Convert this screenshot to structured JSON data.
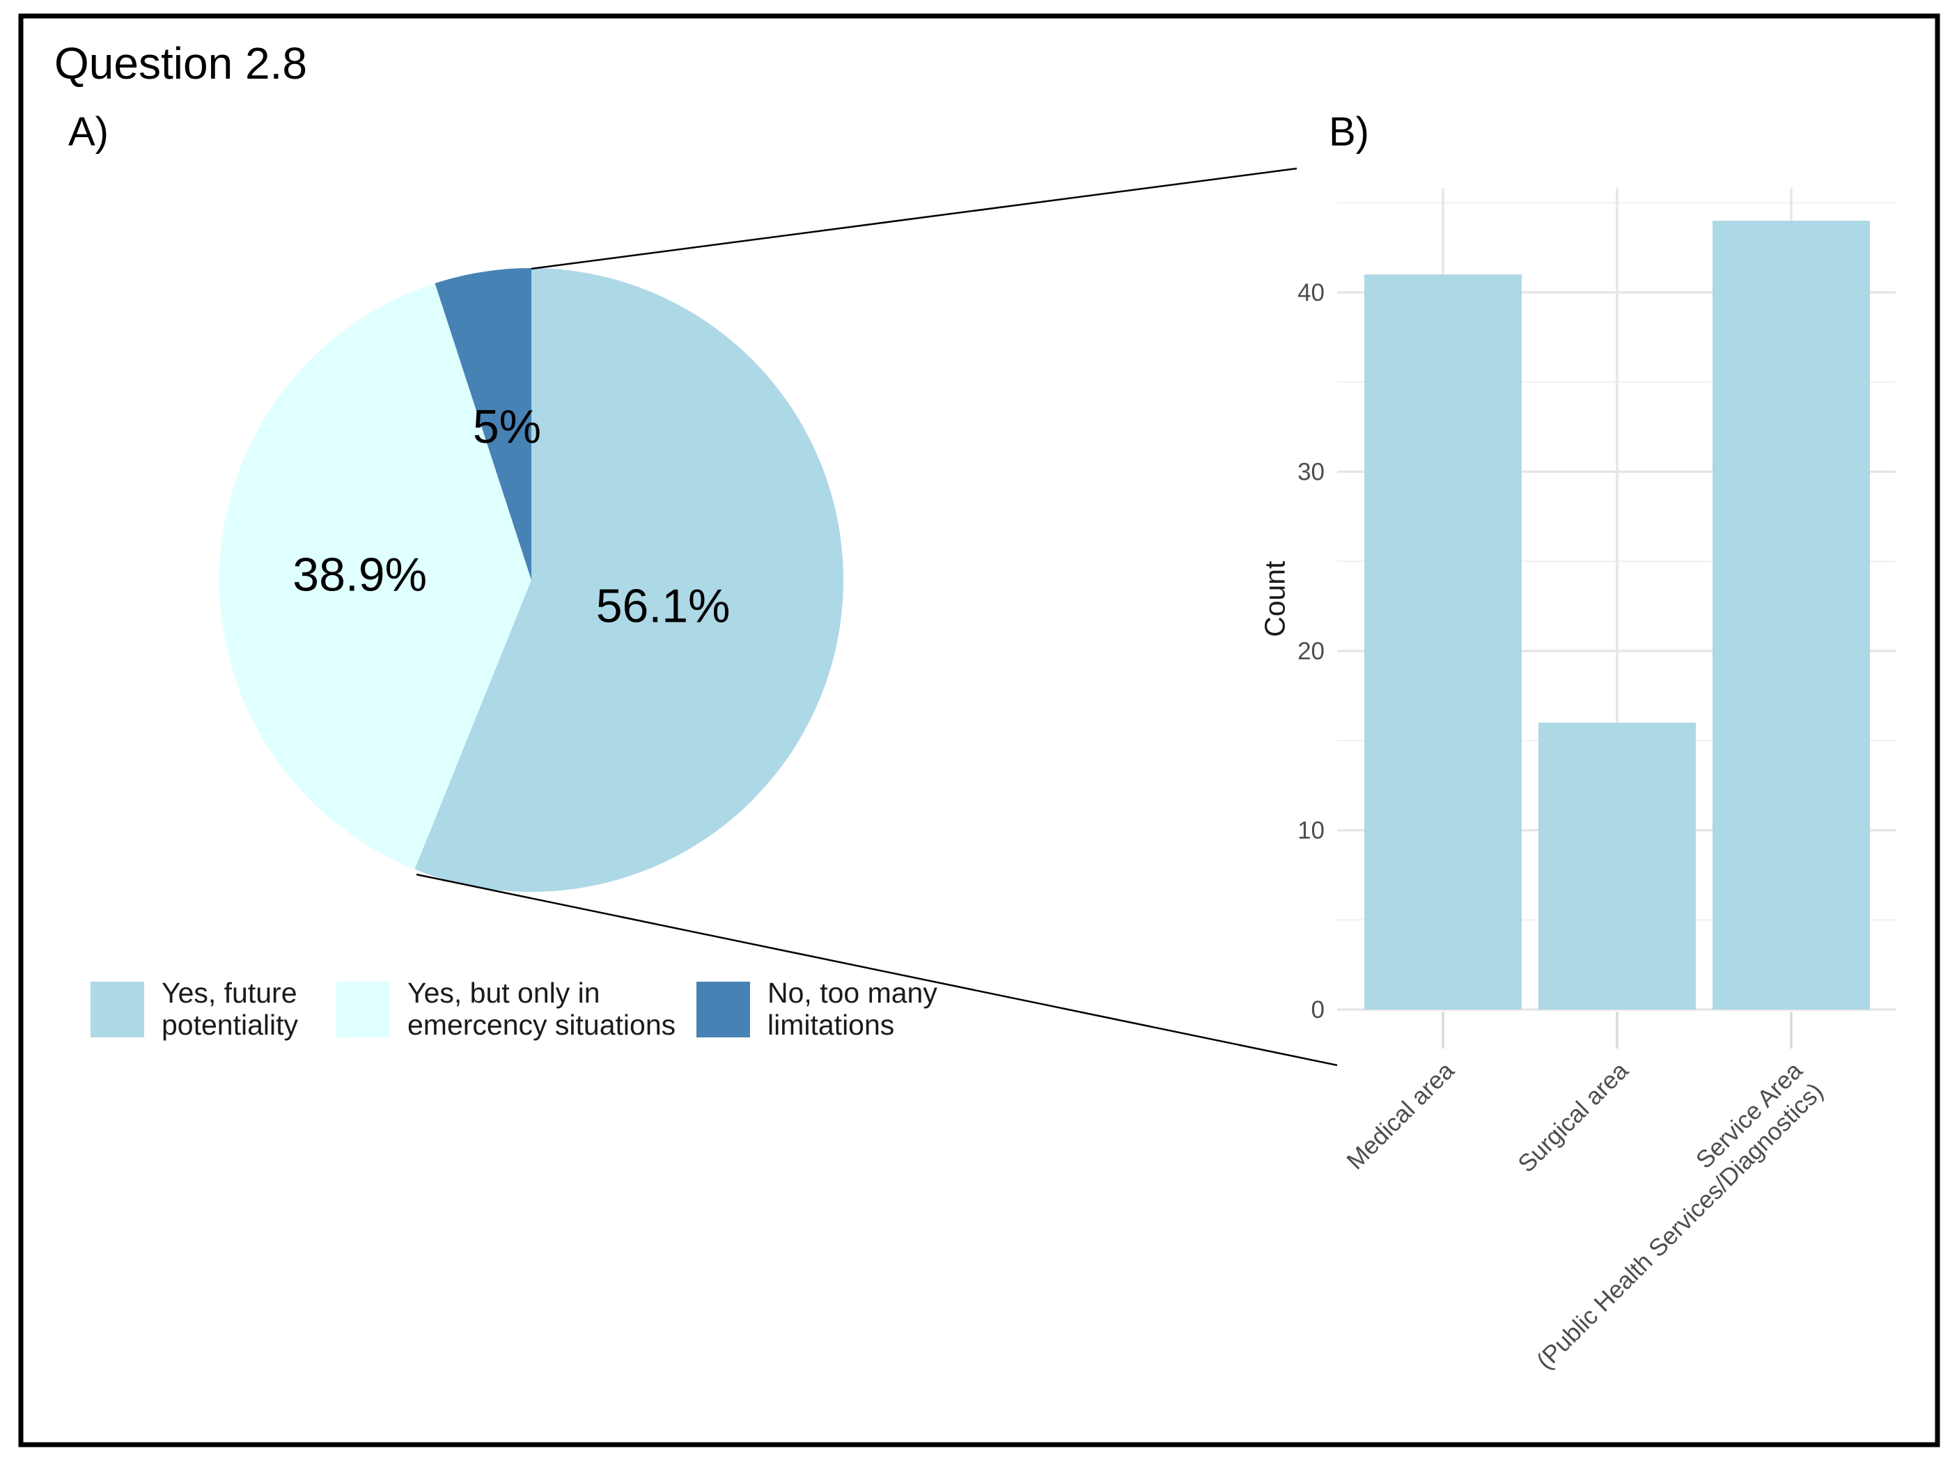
{
  "figure": {
    "title": "Question 2.8",
    "panel_a_label": "A)",
    "panel_b_label": "B)"
  },
  "colors": {
    "yes_future": "#add8e6",
    "yes_emergency": "#e0ffff",
    "no_limitations": "#4682b4",
    "bar_fill": "#add8e6",
    "grid": "#e6e6e6"
  },
  "chart_data": [
    {
      "type": "pie",
      "panel": "A)",
      "slices": [
        {
          "label": "Yes, future potentiality",
          "legend_lines": [
            "Yes, future",
            "potentiality"
          ],
          "value": 56.1,
          "display": "56.1%",
          "color": "#add8e6"
        },
        {
          "label": "Yes, but only in emercency situations",
          "legend_lines": [
            "Yes, but only in",
            "emercency situations"
          ],
          "value": 38.9,
          "display": "38.9%",
          "color": "#e0ffff"
        },
        {
          "label": "No, too many limitations",
          "legend_lines": [
            "No, too many",
            "limitations"
          ],
          "value": 5.0,
          "display": "5%",
          "color": "#4682b4"
        }
      ],
      "start_angle": "12 o'clock",
      "direction": "clockwise",
      "legend_position": "bottom"
    },
    {
      "type": "bar",
      "panel": "B)",
      "categories": [
        [
          "Medical area"
        ],
        [
          "Surgical area"
        ],
        [
          "Service Area",
          "(Public Health Services/Diagnostics)"
        ]
      ],
      "values": [
        41,
        16,
        44
      ],
      "ylabel": "Count",
      "xlabel": "",
      "yticks": [
        0,
        10,
        20,
        30,
        40
      ],
      "ylim": [
        0,
        45.8
      ],
      "grid": true,
      "tick_label_rotation": -45
    }
  ]
}
